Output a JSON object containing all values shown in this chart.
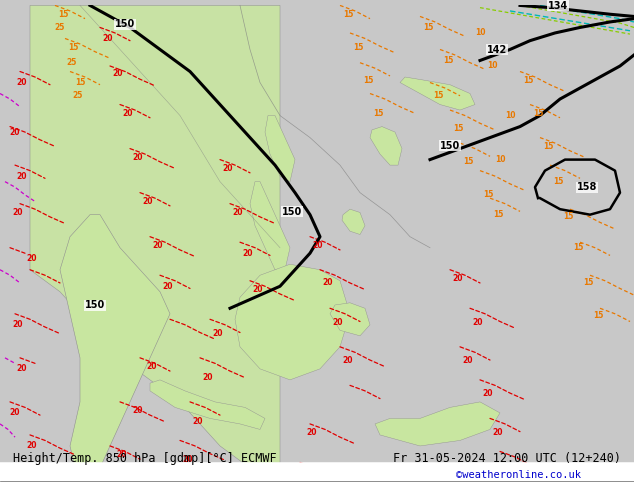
{
  "title_left": "Height/Temp. 850 hPa [gdmp][°C] ECMWF",
  "title_right": "Fr 31-05-2024 12:00 UTC (12+240)",
  "credit": "©weatheronline.co.uk",
  "bg_color": "#d0d0d0",
  "land_green_light": "#c8e6a0",
  "land_green_dark": "#a8d878",
  "fig_width": 6.34,
  "fig_height": 4.9,
  "dpi": 100
}
